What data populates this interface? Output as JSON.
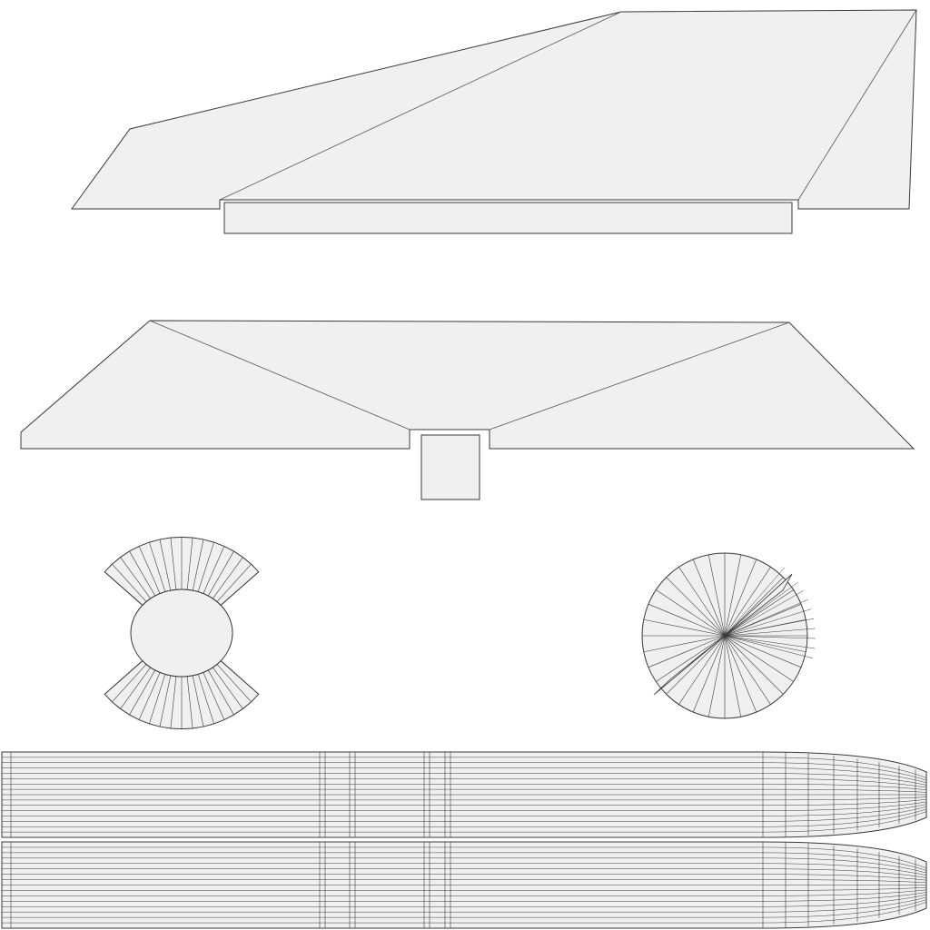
{
  "colors": {
    "background": "#ffffff",
    "face": "#f0f0f0",
    "outline": "#3a3a3a",
    "seam": "#555555"
  },
  "islands": {
    "upper_wing": {
      "grid_cells": 0
    },
    "lower_wing": {
      "grid_cells": 0
    },
    "left_cap": {
      "radial_segments": 32
    },
    "right_cap": {
      "radial_segments": 32
    },
    "fuselage": {
      "longitudinal_strips": 32,
      "ring_sections": 16
    }
  }
}
